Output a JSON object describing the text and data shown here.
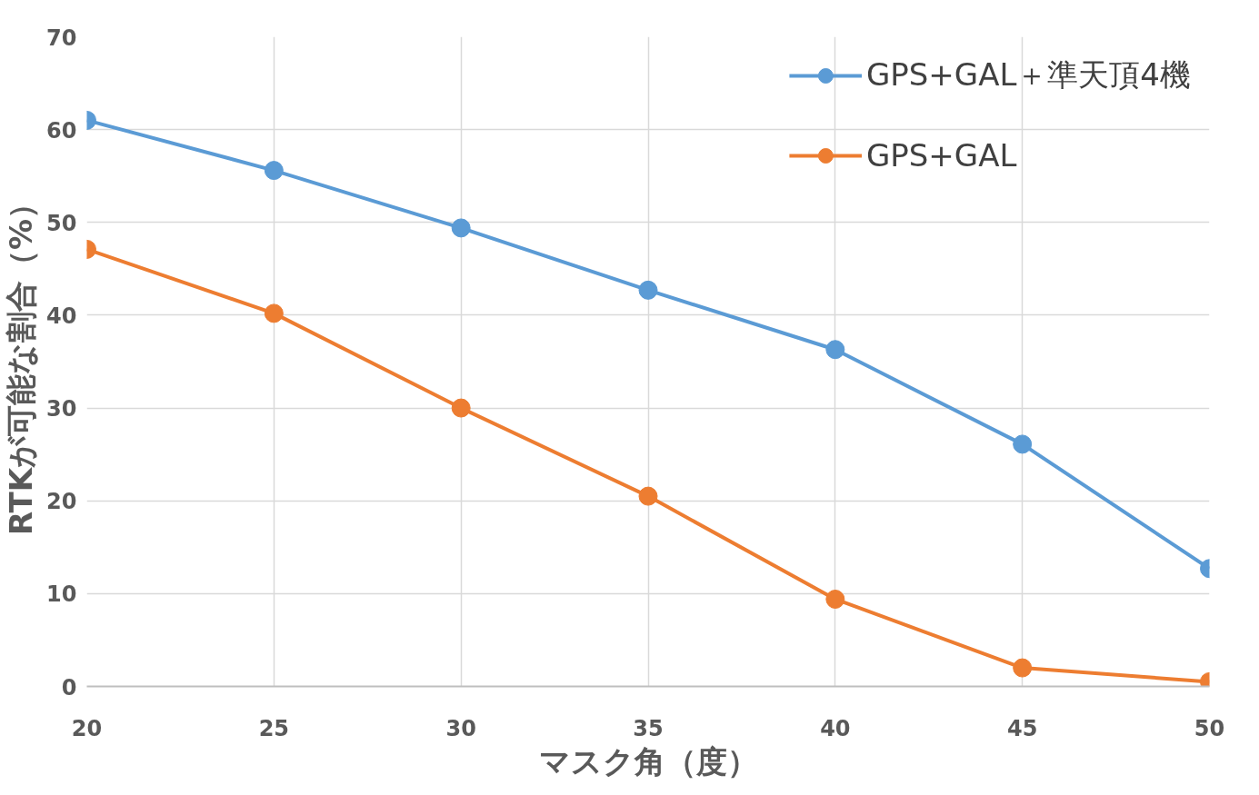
{
  "chart_data": {
    "type": "line",
    "xlabel": "マスク角（度）",
    "ylabel": "RTKが可能な割合（%）",
    "x": [
      20,
      25,
      30,
      35,
      40,
      45,
      50
    ],
    "series": [
      {
        "name": "GPS+GAL＋準天頂4機",
        "color": "#5b9bd5",
        "values": [
          61.0,
          55.6,
          49.4,
          42.7,
          36.3,
          26.1,
          12.7
        ]
      },
      {
        "name": "GPS+GAL",
        "color": "#ed7d31",
        "values": [
          47.1,
          40.2,
          30.0,
          20.5,
          9.4,
          2.0,
          0.5
        ]
      }
    ],
    "xlim": [
      20,
      50
    ],
    "xticks": [
      20,
      25,
      30,
      35,
      40,
      45,
      50
    ],
    "ylim": [
      0,
      70
    ],
    "yticks": [
      0,
      10,
      20,
      30,
      40,
      50,
      60,
      70
    ],
    "grid": true,
    "legend": "top right",
    "marker": "circle",
    "line_style": "solid"
  }
}
